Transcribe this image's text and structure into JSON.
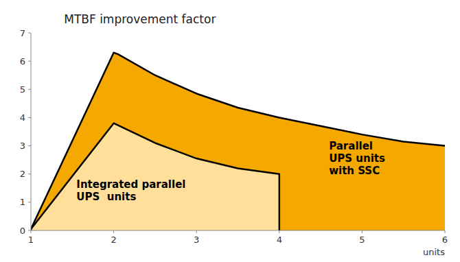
{
  "chart_data": {
    "type": "area",
    "title": "MTBF improvement factor",
    "xlabel": "units",
    "xlim": [
      1,
      6
    ],
    "ylim": [
      0,
      7
    ],
    "xticks": [
      1,
      2,
      3,
      4,
      5,
      6
    ],
    "yticks": [
      0,
      1,
      2,
      3,
      4,
      5,
      6,
      7
    ],
    "grid": false,
    "series": [
      {
        "x": [
          1,
          2,
          2.05,
          2.5,
          3,
          3.5,
          4,
          4.5,
          5,
          5.5,
          6
        ],
        "values": [
          0.05,
          6.3,
          6.25,
          5.5,
          4.85,
          4.35,
          4.0,
          3.7,
          3.4,
          3.15,
          3.0
        ],
        "color": "#F5A800"
      },
      {
        "x": [
          1,
          2,
          2.5,
          3,
          3.5,
          4
        ],
        "values": [
          0.05,
          3.8,
          3.1,
          2.55,
          2.2,
          2.0
        ],
        "color": "#FFDF99"
      }
    ],
    "annotations": [
      {
        "text": "Parallel\nUPS units\nwith SSC",
        "x": 4.6,
        "y": 2.55
      },
      {
        "text": "Integrated parallel\nUPS  units",
        "x": 1.55,
        "y": 1.4
      }
    ]
  }
}
